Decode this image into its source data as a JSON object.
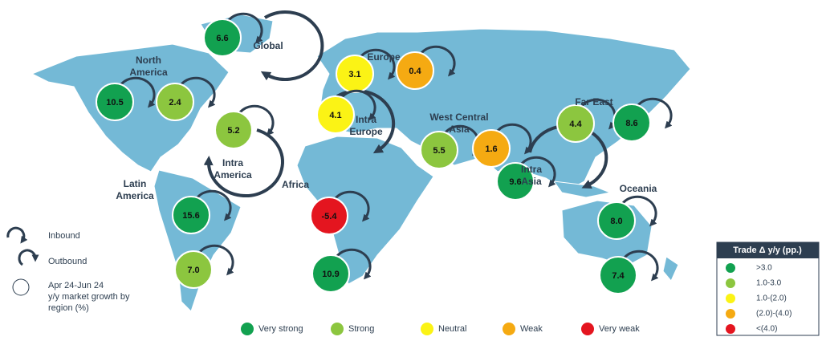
{
  "regions": [
    {
      "label": [
        "Global"
      ],
      "value": "6.6",
      "color": "#12a150"
    },
    {
      "label": [
        "Europe"
      ],
      "value": "3.1",
      "color": "#fbf315"
    },
    {
      "label": [],
      "value": "0.4",
      "color": "#f5aa12"
    },
    {
      "label": [
        "North",
        "America"
      ],
      "value": "10.5",
      "color": "#12a150"
    },
    {
      "label": [],
      "value": "2.4",
      "color": "#8cc63f"
    },
    {
      "label": [
        "Intra",
        "Europe"
      ],
      "value": "4.1",
      "color": "#fbf315"
    },
    {
      "label": [
        "Intra",
        "America"
      ],
      "value": "5.2",
      "color": "#8cc63f"
    },
    {
      "label": [
        "West Central",
        "Asia"
      ],
      "value": "5.5",
      "color": "#8cc63f"
    },
    {
      "label": [],
      "value": "1.6",
      "color": "#f5aa12"
    },
    {
      "label": [
        "Far East"
      ],
      "value": "4.4",
      "color": "#8cc63f"
    },
    {
      "label": [],
      "value": "8.6",
      "color": "#12a150"
    },
    {
      "label": [
        "Intra",
        "Asia"
      ],
      "value": "9.6",
      "color": "#12a150"
    },
    {
      "label": [
        "Latin",
        "America"
      ],
      "value": "15.6",
      "color": "#12a150"
    },
    {
      "label": [
        "Africa"
      ],
      "value": "-5.4",
      "color": "#e4151f"
    },
    {
      "label": [
        "Oceania"
      ],
      "value": "8.0",
      "color": "#12a150"
    },
    {
      "label": [],
      "value": "7.0",
      "color": "#8cc63f"
    },
    {
      "label": [],
      "value": "10.9",
      "color": "#12a150"
    },
    {
      "label": [],
      "value": "7.4",
      "color": "#12a150"
    }
  ],
  "key": {
    "inbound": "Inbound",
    "outbound": "Outbound",
    "bubble": [
      "Apr 24-Jun 24",
      "y/y market growth by",
      "region (%)"
    ]
  },
  "strength_legend": [
    {
      "label": "Very strong",
      "color": "#12a150"
    },
    {
      "label": "Strong",
      "color": "#8cc63f"
    },
    {
      "label": "Neutral",
      "color": "#fbf315"
    },
    {
      "label": "Weak",
      "color": "#f5aa12"
    },
    {
      "label": "Very weak",
      "color": "#e4151f"
    }
  ],
  "trade_legend": {
    "title": "Trade Δ y/y (pp.)",
    "items": [
      {
        "label": ">3.0",
        "color": "#12a150"
      },
      {
        "label": "1.0-3.0",
        "color": "#8cc63f"
      },
      {
        "label": "1.0-(2.0)",
        "color": "#fbf315"
      },
      {
        "label": "(2.0)-(4.0)",
        "color": "#f5aa12"
      },
      {
        "label": "<(4.0)",
        "color": "#e4151f"
      }
    ]
  }
}
